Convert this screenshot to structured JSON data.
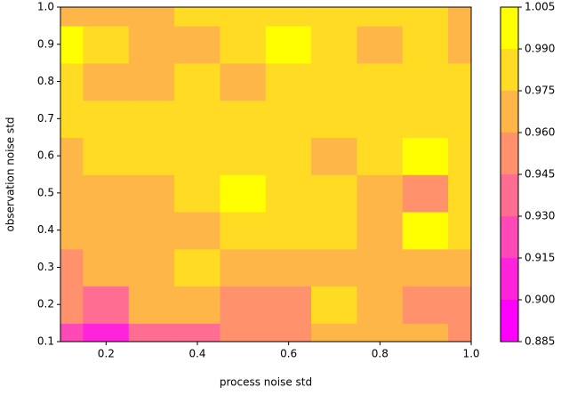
{
  "chart_data": {
    "type": "contour",
    "xlabel": "process noise std",
    "ylabel": "observation noise std",
    "x": [
      0.1,
      0.2,
      0.3,
      0.4,
      0.5,
      0.6,
      0.7,
      0.8,
      0.9,
      1.0
    ],
    "y": [
      0.1,
      0.2,
      0.3,
      0.4,
      0.5,
      0.6,
      0.7,
      0.8,
      0.9,
      1.0
    ],
    "z": [
      [
        0.925,
        0.91,
        0.93,
        0.935,
        0.95,
        0.955,
        0.96,
        0.96,
        0.96,
        0.955
      ],
      [
        0.95,
        0.94,
        0.97,
        0.96,
        0.95,
        0.955,
        0.98,
        0.96,
        0.955,
        0.955
      ],
      [
        0.955,
        0.96,
        0.965,
        0.98,
        0.97,
        0.965,
        0.97,
        0.97,
        0.97,
        0.965
      ],
      [
        0.965,
        0.97,
        0.965,
        0.968,
        0.975,
        0.975,
        0.975,
        0.97,
        0.99,
        0.98
      ],
      [
        0.965,
        0.97,
        0.972,
        0.98,
        0.992,
        0.985,
        0.98,
        0.97,
        0.955,
        0.975
      ],
      [
        0.97,
        0.98,
        0.98,
        0.98,
        0.985,
        0.98,
        0.97,
        0.98,
        0.992,
        0.98
      ],
      [
        0.978,
        0.98,
        0.98,
        0.98,
        0.98,
        0.98,
        0.98,
        0.98,
        0.98,
        0.98
      ],
      [
        0.98,
        0.97,
        0.97,
        0.975,
        0.97,
        0.98,
        0.98,
        0.98,
        0.98,
        0.98
      ],
      [
        0.992,
        0.98,
        0.97,
        0.97,
        0.98,
        0.992,
        0.985,
        0.97,
        0.98,
        0.97
      ],
      [
        0.97,
        0.97,
        0.97,
        0.98,
        0.98,
        0.98,
        0.98,
        0.98,
        0.975,
        0.97
      ]
    ],
    "levels": [
      0.885,
      0.9,
      0.915,
      0.93,
      0.945,
      0.96,
      0.975,
      0.99,
      1.005
    ],
    "colors": [
      "#ff00ff",
      "#ff24db",
      "#ff49b6",
      "#ff6d92",
      "#ff926d",
      "#ffb649",
      "#ffdb24",
      "#ffff00"
    ],
    "xlim": [
      0.1,
      1.0
    ],
    "ylim": [
      0.1,
      1.0
    ],
    "xticks": [
      0.2,
      0.4,
      0.6,
      0.8,
      {
        "value": 1.0,
        "label": "1.0"
      }
    ],
    "yticks": [
      0.1,
      0.2,
      0.3,
      0.4,
      0.5,
      0.6,
      0.7,
      0.8,
      0.9,
      {
        "value": 1.0,
        "label": "1.0"
      }
    ],
    "colorbar_ticks": [
      0.885,
      {
        "value": 0.9,
        "label": "0.900"
      },
      0.915,
      {
        "value": 0.93,
        "label": "0.930"
      },
      0.945,
      {
        "value": 0.96,
        "label": "0.960"
      },
      0.975,
      {
        "value": 0.99,
        "label": "0.990"
      },
      1.005
    ]
  }
}
